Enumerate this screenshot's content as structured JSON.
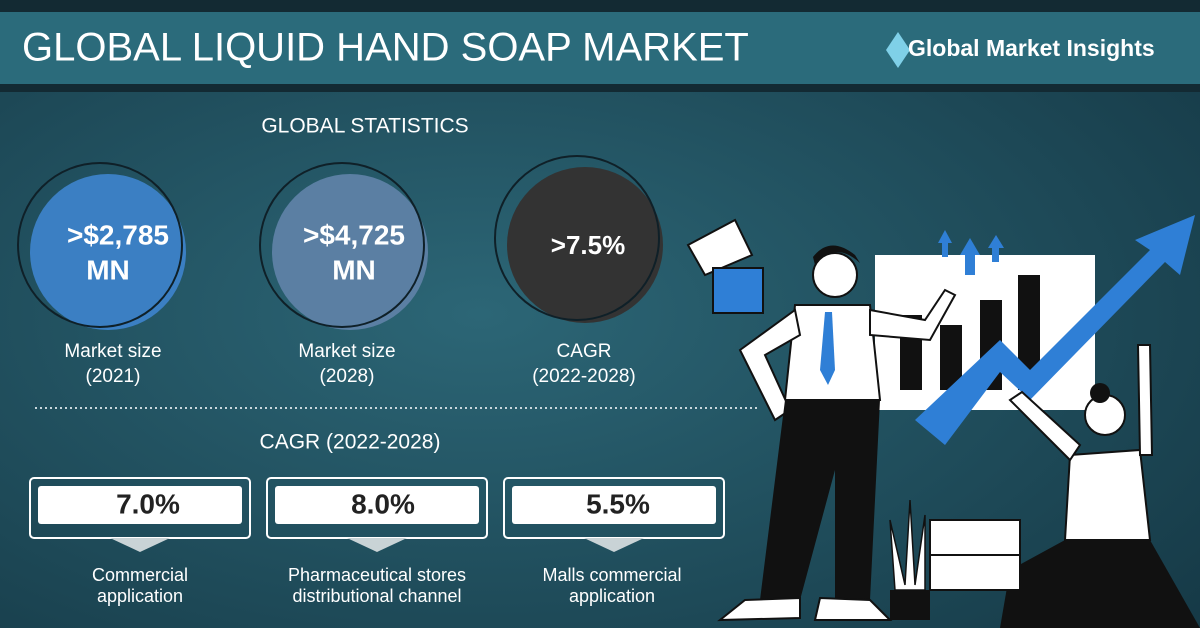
{
  "header": {
    "title": "GLOBAL LIQUID HAND SOAP MARKET",
    "logo": "Global Market Insights"
  },
  "statistics": {
    "title": "GLOBAL STATISTICS",
    "items": [
      {
        "value": ">$2,785",
        "unit": "MN",
        "label": "Market size",
        "period": "(2021)"
      },
      {
        "value": ">$4,725",
        "unit": "MN",
        "label": "Market size",
        "period": "(2028)"
      },
      {
        "value": ">7.5%",
        "label": "CAGR",
        "period": "(2022-2028)"
      }
    ]
  },
  "cagr": {
    "title": "CAGR (2022-2028)",
    "segments": [
      {
        "value": "7.0%",
        "label": "Commercial",
        "label2": "application"
      },
      {
        "value": "8.0%",
        "label": "Pharmaceutical stores",
        "label2": "distributional channel"
      },
      {
        "value": "5.5%",
        "label": "Malls commercial",
        "label2": "application"
      }
    ]
  }
}
